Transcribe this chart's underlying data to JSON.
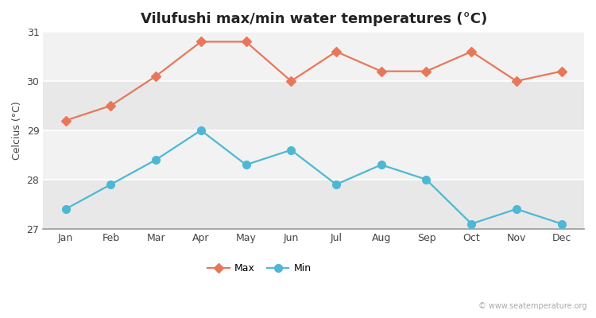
{
  "title": "Vilufushi max/min water temperatures (°C)",
  "ylabel": "Celcius (°C)",
  "months": [
    "Jan",
    "Feb",
    "Mar",
    "Apr",
    "May",
    "Jun",
    "Jul",
    "Aug",
    "Sep",
    "Oct",
    "Nov",
    "Dec"
  ],
  "max_temps": [
    29.2,
    29.5,
    30.1,
    30.8,
    30.8,
    30.0,
    30.6,
    30.2,
    30.2,
    30.6,
    30.0,
    30.2
  ],
  "min_temps": [
    27.4,
    27.9,
    28.4,
    29.0,
    28.3,
    28.6,
    27.9,
    28.3,
    28.0,
    27.1,
    27.4,
    27.1
  ],
  "max_color": "#e8775a",
  "min_color": "#4eb8d4",
  "ylim": [
    27.0,
    31.0
  ],
  "yticks": [
    27,
    28,
    29,
    30,
    31
  ],
  "bg_color": "#ffffff",
  "plot_bg_odd": "#e8e8e8",
  "plot_bg_even": "#f2f2f2",
  "grid_color": "#ffffff",
  "legend_max": "Max",
  "legend_min": "Min",
  "watermark": "© www.seatemperature.org",
  "title_fontsize": 13,
  "label_fontsize": 9,
  "tick_fontsize": 9,
  "marker_max": "D",
  "marker_min": "o",
  "linewidth": 1.6,
  "markersize_max": 6,
  "markersize_min": 7
}
